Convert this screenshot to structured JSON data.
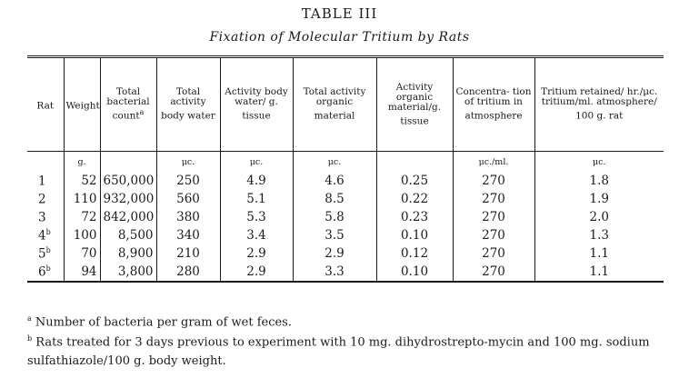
{
  "title": "TABLE III",
  "subtitle": "Fixation of Molecular Tritium by Rats",
  "columns": [
    {
      "label": "Rat",
      "sup": ""
    },
    {
      "label": "Weight",
      "sup": ""
    },
    {
      "label": "Total bacterial count",
      "sup": "a"
    },
    {
      "label": "Total activity body water",
      "sup": ""
    },
    {
      "label": "Activity body water/ g. tissue",
      "sup": ""
    },
    {
      "label": "Total activity organic material",
      "sup": ""
    },
    {
      "label": "Activity organic material/g. tissue",
      "sup": ""
    },
    {
      "label": "Concentra- tion of tritium in atmosphere",
      "sup": ""
    },
    {
      "label": "Tritium retained/ hr./μc. tritium/ml. atmosphere/ 100 g. rat",
      "sup": ""
    }
  ],
  "units": [
    "",
    "g.",
    "",
    "μc.",
    "μc.",
    "μc.",
    "",
    "μc./ml.",
    "μc."
  ],
  "rows": [
    {
      "rat": "1",
      "sup": "",
      "weight": "52",
      "count": "650,000",
      "body_water": "250",
      "bw_per_g": "4.9",
      "organic": "4.6",
      "org_per_g": "0.25",
      "conc": "270",
      "retained": "1.8"
    },
    {
      "rat": "2",
      "sup": "",
      "weight": "110",
      "count": "932,000",
      "body_water": "560",
      "bw_per_g": "5.1",
      "organic": "8.5",
      "org_per_g": "0.22",
      "conc": "270",
      "retained": "1.9"
    },
    {
      "rat": "3",
      "sup": "",
      "weight": "72",
      "count": "842,000",
      "body_water": "380",
      "bw_per_g": "5.3",
      "organic": "5.8",
      "org_per_g": "0.23",
      "conc": "270",
      "retained": "2.0"
    },
    {
      "rat": "4",
      "sup": "b",
      "weight": "100",
      "count": "8,500",
      "body_water": "340",
      "bw_per_g": "3.4",
      "organic": "3.5",
      "org_per_g": "0.10",
      "conc": "270",
      "retained": "1.3"
    },
    {
      "rat": "5",
      "sup": "b",
      "weight": "70",
      "count": "8,900",
      "body_water": "210",
      "bw_per_g": "2.9",
      "organic": "2.9",
      "org_per_g": "0.12",
      "conc": "270",
      "retained": "1.1"
    },
    {
      "rat": "6",
      "sup": "b",
      "weight": "94",
      "count": "3,800",
      "body_water": "280",
      "bw_per_g": "2.9",
      "organic": "3.3",
      "org_per_g": "0.10",
      "conc": "270",
      "retained": "1.1"
    }
  ],
  "footnotes": [
    {
      "mark": "a",
      "text": " Number of bacteria per gram of wet feces."
    },
    {
      "mark": "b",
      "text": " Rats treated for 3 days previous to experiment with 10 mg. dihydrostrepto-mycin and 100 mg. sodium sulfathiazole/100 g. body weight."
    }
  ]
}
